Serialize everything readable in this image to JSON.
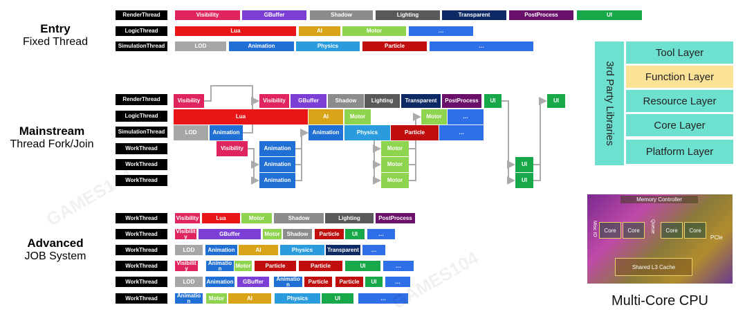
{
  "sections": {
    "entry": {
      "title": "Entry",
      "subtitle": "Fixed Thread"
    },
    "mainstream": {
      "title": "Mainstream",
      "subtitle": "Thread Fork/Join"
    },
    "advanced": {
      "title": "Advanced",
      "subtitle": "JOB System"
    }
  },
  "colors": {
    "visibility": "#e0245e",
    "gbuffer": "#7b3fd6",
    "shadow": "#8c8c8c",
    "lighting": "#595959",
    "transparent": "#0d2a66",
    "postprocess": "#6a0f6a",
    "ui": "#17a84a",
    "lua": "#e81616",
    "ai": "#d9a417",
    "motor": "#8fd44e",
    "ellipsis": "#2f6fe8",
    "lod": "#a6a6a6",
    "animation": "#1f6fd4",
    "physics": "#2a9bdc",
    "particle": "#c00d0d"
  },
  "entry_rows": [
    {
      "label": "RenderThread",
      "blocks": [
        {
          "text": "Visibility",
          "color": "visibility"
        },
        {
          "text": "GBuffer",
          "color": "gbuffer"
        },
        {
          "text": "Shadow",
          "color": "shadow"
        },
        {
          "text": "Lighting",
          "color": "lighting"
        },
        {
          "text": "Transparent",
          "color": "transparent"
        },
        {
          "text": "PostProcess",
          "color": "postprocess"
        },
        {
          "text": "UI",
          "color": "ui"
        }
      ]
    },
    {
      "label": "LogicThread",
      "blocks": [
        {
          "text": "Lua",
          "color": "lua"
        },
        {
          "text": "AI",
          "color": "ai"
        },
        {
          "text": "Motor",
          "color": "motor"
        },
        {
          "text": "…",
          "color": "ellipsis"
        }
      ]
    },
    {
      "label": "SimulationThread",
      "blocks": [
        {
          "text": "LOD",
          "color": "lod"
        },
        {
          "text": "Animation",
          "color": "animation"
        },
        {
          "text": "Physics",
          "color": "physics"
        },
        {
          "text": "Particle",
          "color": "particle"
        },
        {
          "text": "…",
          "color": "ellipsis"
        }
      ]
    }
  ],
  "mainstream_labels": [
    "RenderThread",
    "LogicThread",
    "SimulationThread",
    "WorkThread",
    "WorkThread",
    "WorkThread"
  ],
  "mainstream_blocks": [
    {
      "text": "Visibility",
      "color": "visibility"
    },
    {
      "text": "Visibility",
      "color": "visibility"
    },
    {
      "text": "GBuffer",
      "color": "gbuffer"
    },
    {
      "text": "Shadow",
      "color": "shadow"
    },
    {
      "text": "Lighting",
      "color": "lighting"
    },
    {
      "text": "Transparent",
      "color": "transparent"
    },
    {
      "text": "PostProcess",
      "color": "postprocess"
    },
    {
      "text": "UI",
      "color": "ui"
    },
    {
      "text": "UI",
      "color": "ui"
    },
    {
      "text": "Lua",
      "color": "lua"
    },
    {
      "text": "AI",
      "color": "ai"
    },
    {
      "text": "Motor",
      "color": "motor"
    },
    {
      "text": "Motor",
      "color": "motor"
    },
    {
      "text": "…",
      "color": "ellipsis"
    },
    {
      "text": "LOD",
      "color": "lod"
    },
    {
      "text": "Animation",
      "color": "animation"
    },
    {
      "text": "Animation",
      "color": "animation"
    },
    {
      "text": "Physics",
      "color": "physics"
    },
    {
      "text": "Particle",
      "color": "particle"
    },
    {
      "text": "…",
      "color": "ellipsis"
    },
    {
      "text": "Visibility",
      "color": "visibility"
    },
    {
      "text": "Animation",
      "color": "animation"
    },
    {
      "text": "Motor",
      "color": "motor"
    },
    {
      "text": "Animation",
      "color": "animation"
    },
    {
      "text": "Motor",
      "color": "motor"
    },
    {
      "text": "UI",
      "color": "ui"
    },
    {
      "text": "Animation",
      "color": "animation"
    },
    {
      "text": "Motor",
      "color": "motor"
    },
    {
      "text": "UI",
      "color": "ui"
    }
  ],
  "advanced_rows": [
    {
      "label": "WorkThread",
      "blocks": [
        {
          "text": "Visibility",
          "color": "visibility"
        },
        {
          "text": "Lua",
          "color": "lua"
        },
        {
          "text": "Motor",
          "color": "motor"
        },
        {
          "text": "Shadow",
          "color": "shadow"
        },
        {
          "text": "Lighting",
          "color": "lighting"
        },
        {
          "text": "PostProcess",
          "color": "postprocess"
        }
      ]
    },
    {
      "label": "WorkThread",
      "blocks": [
        {
          "text": "Visibility",
          "color": "visibility"
        },
        {
          "text": "GBuffer",
          "color": "gbuffer"
        },
        {
          "text": "Motor",
          "color": "motor"
        },
        {
          "text": "Shadow",
          "color": "shadow"
        },
        {
          "text": "Particle",
          "color": "particle"
        },
        {
          "text": "UI",
          "color": "ui"
        },
        {
          "text": "…",
          "color": "ellipsis"
        }
      ]
    },
    {
      "label": "WorkThread",
      "blocks": [
        {
          "text": "LOD",
          "color": "lod"
        },
        {
          "text": "Animation",
          "color": "animation"
        },
        {
          "text": "AI",
          "color": "ai"
        },
        {
          "text": "Physics",
          "color": "physics"
        },
        {
          "text": "Transparent",
          "color": "transparent"
        },
        {
          "text": "…",
          "color": "ellipsis"
        }
      ]
    },
    {
      "label": "WorkThread",
      "blocks": [
        {
          "text": "Visibility",
          "color": "visibility"
        },
        {
          "text": "Animation",
          "color": "animation"
        },
        {
          "text": "Motor",
          "color": "motor"
        },
        {
          "text": "Particle",
          "color": "particle"
        },
        {
          "text": "Particle",
          "color": "particle"
        },
        {
          "text": "UI",
          "color": "ui"
        },
        {
          "text": "…",
          "color": "ellipsis"
        }
      ]
    },
    {
      "label": "WorkThread",
      "blocks": [
        {
          "text": "LOD",
          "color": "lod"
        },
        {
          "text": "Animation",
          "color": "animation"
        },
        {
          "text": "GBuffer",
          "color": "gbuffer"
        },
        {
          "text": "Animation",
          "color": "animation"
        },
        {
          "text": "Particle",
          "color": "particle"
        },
        {
          "text": "Particle",
          "color": "particle"
        },
        {
          "text": "UI",
          "color": "ui"
        },
        {
          "text": "…",
          "color": "ellipsis"
        }
      ]
    },
    {
      "label": "WorkThread",
      "blocks": [
        {
          "text": "Animation",
          "color": "animation"
        },
        {
          "text": "Motor",
          "color": "motor"
        },
        {
          "text": "AI",
          "color": "ai"
        },
        {
          "text": "Physics",
          "color": "physics"
        },
        {
          "text": "UI",
          "color": "ui"
        },
        {
          "text": "…",
          "color": "ellipsis"
        }
      ]
    }
  ],
  "engine_layers": {
    "side_label": "3rd Party Libraries",
    "layers": [
      "Tool Layer",
      "Function Layer",
      "Resource Layer",
      "Core Layer",
      "Platform Layer"
    ]
  },
  "cpu": {
    "caption": "Multi-Core CPU",
    "memory_controller": "Memory Controller",
    "cores": [
      "Core",
      "Core",
      "Core",
      "Core"
    ],
    "misc": "Misc IO",
    "queue": "Queue",
    "pcie": "PCIe",
    "cache": "Shared L3 Cache"
  },
  "watermark": "GAMES104"
}
